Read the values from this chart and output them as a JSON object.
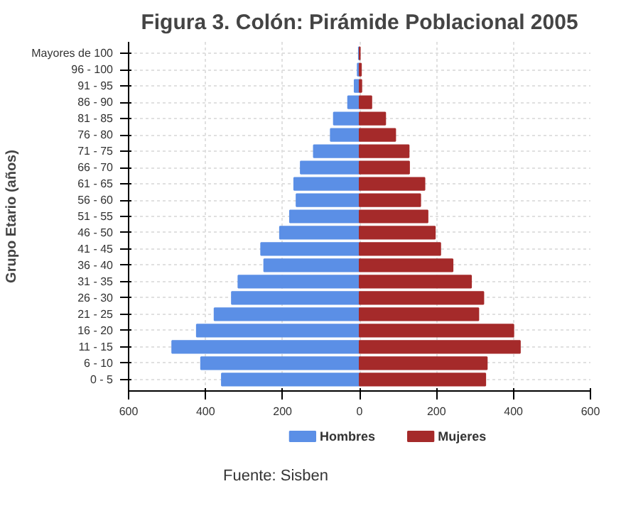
{
  "chart_data": {
    "type": "bar",
    "orientation": "horizontal",
    "stacked": true,
    "title": "Figura 3. Colón: Pirámide Poblacional 2005",
    "ylabel": "Grupo Etario (años)",
    "annotations": [
      "Fuente: Sisben"
    ],
    "categories": [
      "Mayores de 100",
      "96 - 100",
      "91 - 95",
      "86 - 90",
      "81 - 85",
      "76 - 80",
      "71 - 75",
      "66 - 70",
      "61 - 65",
      "56 - 60",
      "51 - 55",
      "46 - 50",
      "41 - 45",
      "36 - 40",
      "31 - 35",
      "26 - 30",
      "21 - 25",
      "16 - 20",
      "11 - 15",
      "6 - 10",
      "0 - 5"
    ],
    "series": [
      {
        "name": "Hombres",
        "color": "#5b8fe6",
        "values": [
          -2,
          -5,
          -13,
          -30,
          -67,
          -75,
          -119,
          -153,
          -170,
          -164,
          -181,
          -207,
          -256,
          -248,
          -315,
          -332,
          -377,
          -423,
          -487,
          -412,
          -358
        ]
      },
      {
        "name": "Mujeres",
        "color": "#a52a2a",
        "values": [
          1,
          4,
          5,
          31,
          67,
          93,
          128,
          129,
          169,
          158,
          177,
          196,
          210,
          242,
          290,
          322,
          309,
          400,
          417,
          331,
          327
        ]
      }
    ],
    "xlim": [
      -600,
      600
    ],
    "xticks": [
      {
        "value": -600,
        "label": "600"
      },
      {
        "value": -400,
        "label": "400"
      },
      {
        "value": -200,
        "label": "200"
      },
      0,
      200,
      400,
      600
    ],
    "grid": true,
    "legend": "bottom"
  }
}
